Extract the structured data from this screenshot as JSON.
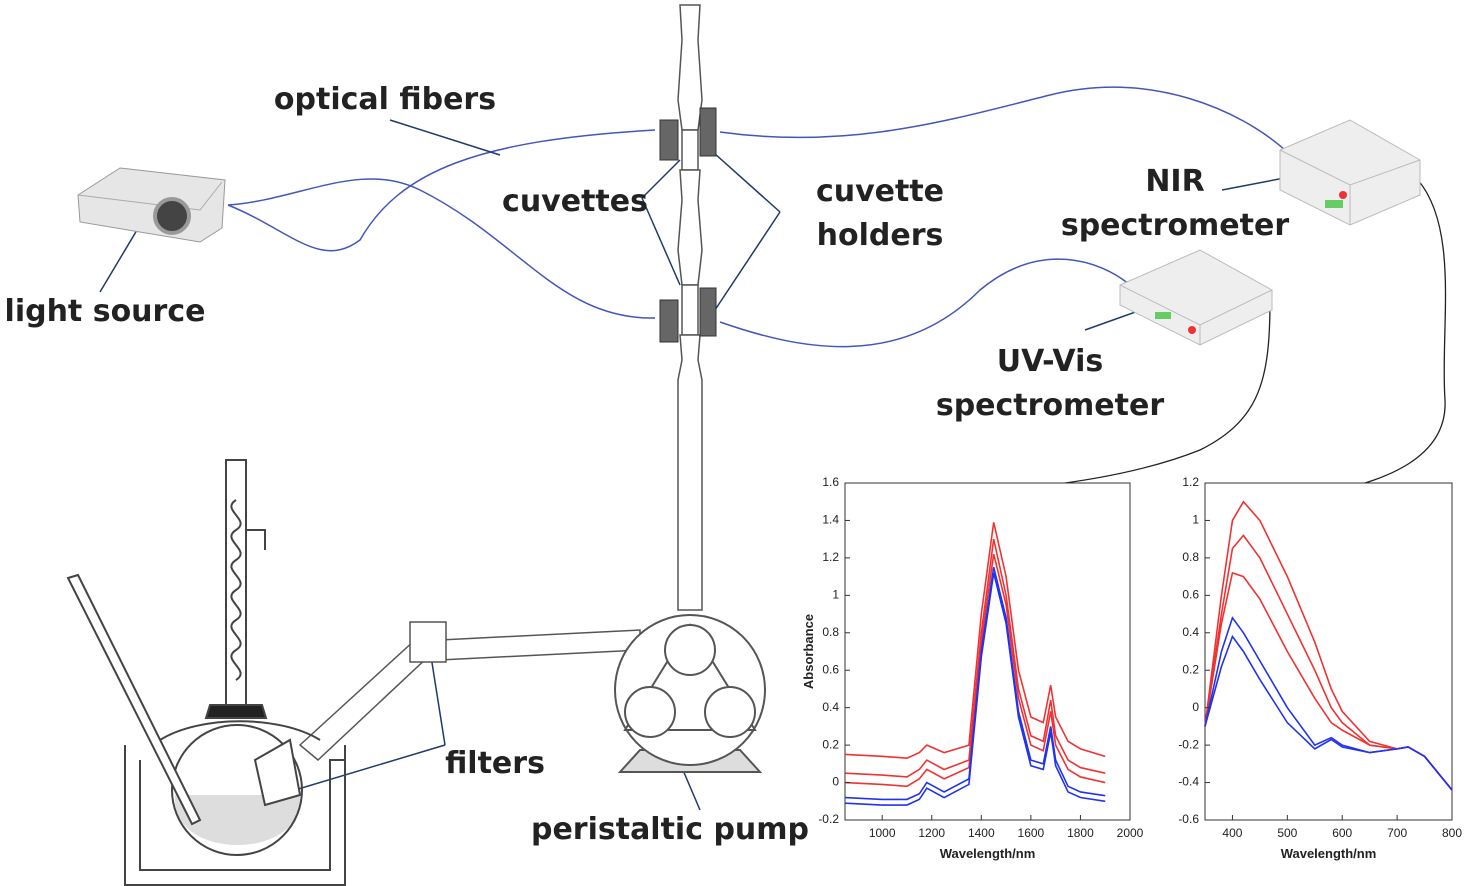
{
  "labels": {
    "optical_fibers": "optical fibers",
    "light_source": "light source",
    "cuvettes": "cuvettes",
    "cuvette_holders": "cuvette holders",
    "nir_spectrometer": "NIR spectrometer",
    "uv_vis_spectrometer": "UV-Vis spectrometer",
    "filters": "filters",
    "peristaltic_pump": "peristaltic pump"
  },
  "chart_data": [
    {
      "type": "line",
      "x_label": "Wavelength/nm",
      "y_label": "Absorbance",
      "x": [
        850,
        1000,
        1100,
        1150,
        1180,
        1250,
        1350,
        1400,
        1450,
        1500,
        1550,
        1600,
        1650,
        1680,
        1700,
        1750,
        1800,
        1900
      ],
      "xlim": [
        850,
        2000
      ],
      "xticks": [
        1000,
        1200,
        1400,
        1600,
        1800,
        2000
      ],
      "ylim": [
        -0.2,
        1.6
      ],
      "yticks": [
        -0.2,
        0,
        0.2,
        0.4,
        0.6,
        0.8,
        1,
        1.2,
        1.4,
        1.6
      ],
      "series": [
        {
          "color": "#ee3333",
          "values": [
            0.15,
            0.14,
            0.13,
            0.16,
            0.2,
            0.16,
            0.2,
            0.9,
            1.39,
            1.1,
            0.6,
            0.35,
            0.32,
            0.52,
            0.35,
            0.22,
            0.18,
            0.14
          ]
        },
        {
          "color": "#ee3333",
          "values": [
            0.05,
            0.04,
            0.03,
            0.07,
            0.12,
            0.07,
            0.12,
            0.8,
            1.3,
            1.0,
            0.5,
            0.25,
            0.22,
            0.44,
            0.25,
            0.12,
            0.08,
            0.05
          ]
        },
        {
          "color": "#ee3333",
          "values": [
            0,
            -0.01,
            -0.02,
            0.02,
            0.07,
            0.02,
            0.08,
            0.75,
            1.22,
            0.95,
            0.45,
            0.2,
            0.17,
            0.38,
            0.2,
            0.07,
            0.03,
            0
          ]
        },
        {
          "color": "#2233ee",
          "values": [
            -0.08,
            -0.09,
            -0.09,
            -0.06,
            0,
            -0.05,
            0.02,
            0.7,
            1.15,
            0.88,
            0.38,
            0.12,
            0.1,
            0.3,
            0.12,
            -0.02,
            -0.05,
            -0.07
          ]
        },
        {
          "color": "#2233ee",
          "values": [
            -0.11,
            -0.12,
            -0.12,
            -0.09,
            -0.03,
            -0.08,
            -0.01,
            0.67,
            1.12,
            0.85,
            0.35,
            0.09,
            0.07,
            0.27,
            0.09,
            -0.05,
            -0.08,
            -0.1
          ]
        }
      ]
    },
    {
      "type": "line",
      "x_label": "Wavelength/nm",
      "x": [
        350,
        380,
        400,
        420,
        450,
        500,
        550,
        580,
        600,
        650,
        700,
        720,
        750,
        800
      ],
      "xlim": [
        350,
        800
      ],
      "xticks": [
        400,
        500,
        600,
        700,
        800
      ],
      "ylim": [
        -0.6,
        1.2
      ],
      "yticks": [
        -0.6,
        -0.4,
        -0.2,
        0,
        0.2,
        0.4,
        0.6,
        0.8,
        1,
        1.2
      ],
      "series": [
        {
          "color": "#ee3333",
          "values": [
            -0.1,
            0.6,
            1.0,
            1.1,
            1.0,
            0.7,
            0.35,
            0.1,
            -0.02,
            -0.18,
            -0.22,
            -0.21,
            -0.26,
            -0.44
          ]
        },
        {
          "color": "#ee3333",
          "values": [
            -0.1,
            0.5,
            0.85,
            0.92,
            0.8,
            0.5,
            0.2,
            0,
            -0.08,
            -0.2,
            -0.22,
            -0.21,
            -0.26,
            -0.44
          ]
        },
        {
          "color": "#ee3333",
          "values": [
            -0.1,
            0.45,
            0.72,
            0.7,
            0.58,
            0.3,
            0.05,
            -0.08,
            -0.12,
            -0.2,
            -0.22,
            -0.21,
            -0.26,
            -0.44
          ]
        },
        {
          "color": "#2233ee",
          "values": [
            -0.1,
            0.3,
            0.48,
            0.4,
            0.25,
            0,
            -0.2,
            -0.16,
            -0.2,
            -0.24,
            -0.22,
            -0.21,
            -0.26,
            -0.44
          ]
        },
        {
          "color": "#2233ee",
          "values": [
            -0.1,
            0.22,
            0.38,
            0.3,
            0.15,
            -0.08,
            -0.22,
            -0.17,
            -0.21,
            -0.24,
            -0.22,
            -0.21,
            -0.26,
            -0.44
          ]
        }
      ]
    }
  ]
}
